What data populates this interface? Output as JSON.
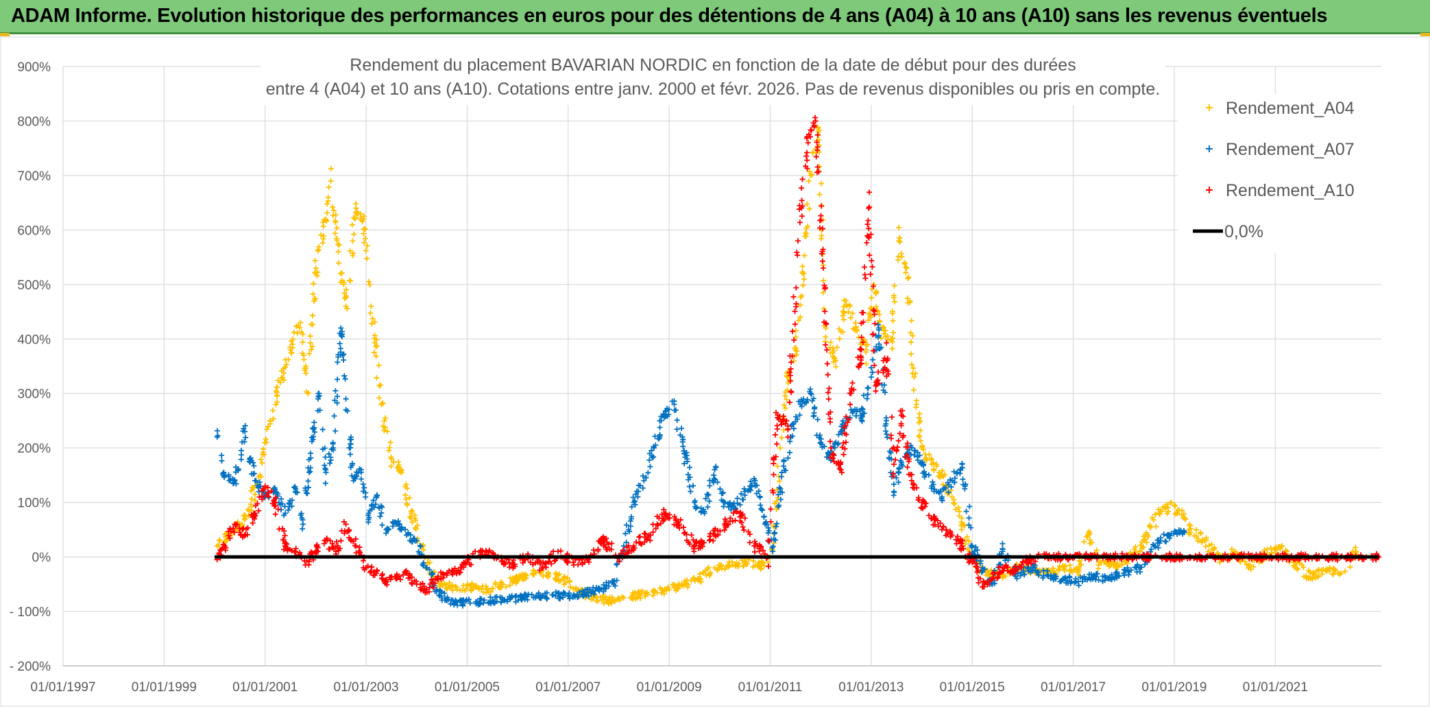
{
  "header": {
    "title": "ADAM Informe. Evolution historique des performances en euros pour des détentions de 4 ans (A04) à 10 ans (A10) sans les revenus éventuels",
    "background_color": "#7fc97a"
  },
  "chart_data": {
    "type": "scatter",
    "title_line1": "Rendement du placement BAVARIAN NORDIC en fonction de la date de début pour des durées",
    "title_line2": "entre 4 (A04) et 10 ans (A10). Cotations entre janv. 2000 et févr. 2026. Pas de revenus disponibles ou pris en compte.",
    "xlabel": "",
    "ylabel": "",
    "x_ticks": [
      "01/01/1997",
      "01/01/1999",
      "01/01/2001",
      "01/01/2003",
      "01/01/2005",
      "01/01/2007",
      "01/01/2009",
      "01/01/2011",
      "01/01/2013",
      "01/01/2015",
      "01/01/2017",
      "01/01/2019",
      "01/01/2021"
    ],
    "y_ticks": [
      "- 200%",
      "- 100%",
      "0%",
      "100%",
      "200%",
      "300%",
      "400%",
      "500%",
      "600%",
      "700%",
      "800%",
      "900%"
    ],
    "xlim": [
      1997.0,
      2023.1
    ],
    "ylim": [
      -200,
      900
    ],
    "grid": true,
    "legend_position": "top-right",
    "series": [
      {
        "name": "Rendement_A04",
        "color": "#ffc000",
        "marker": "+",
        "points": [
          [
            2000.05,
            20
          ],
          [
            2000.3,
            40
          ],
          [
            2000.6,
            70
          ],
          [
            2000.9,
            150
          ],
          [
            2001.1,
            250
          ],
          [
            2001.3,
            320
          ],
          [
            2001.5,
            380
          ],
          [
            2001.7,
            430
          ],
          [
            2001.85,
            300
          ],
          [
            2002.0,
            520
          ],
          [
            2002.2,
            620
          ],
          [
            2002.3,
            690
          ],
          [
            2002.45,
            560
          ],
          [
            2002.6,
            460
          ],
          [
            2002.8,
            640
          ],
          [
            2002.95,
            620
          ],
          [
            2003.1,
            460
          ],
          [
            2003.3,
            280
          ],
          [
            2003.5,
            180
          ],
          [
            2003.7,
            160
          ],
          [
            2003.9,
            80
          ],
          [
            2004.1,
            20
          ],
          [
            2004.3,
            -30
          ],
          [
            2004.5,
            -50
          ],
          [
            2004.8,
            -60
          ],
          [
            2005.1,
            -55
          ],
          [
            2005.4,
            -60
          ],
          [
            2005.7,
            -50
          ],
          [
            2006.0,
            -40
          ],
          [
            2006.3,
            -30
          ],
          [
            2006.6,
            -30
          ],
          [
            2006.9,
            -40
          ],
          [
            2007.2,
            -60
          ],
          [
            2007.5,
            -75
          ],
          [
            2007.8,
            -80
          ],
          [
            2008.1,
            -75
          ],
          [
            2008.4,
            -70
          ],
          [
            2008.7,
            -65
          ],
          [
            2009.0,
            -60
          ],
          [
            2009.3,
            -50
          ],
          [
            2009.6,
            -40
          ],
          [
            2009.9,
            -20
          ],
          [
            2010.2,
            -15
          ],
          [
            2010.5,
            -10
          ],
          [
            2010.8,
            -15
          ],
          [
            2011.05,
            10
          ],
          [
            2011.2,
            200
          ],
          [
            2011.35,
            330
          ],
          [
            2011.5,
            380
          ],
          [
            2011.65,
            520
          ],
          [
            2011.8,
            700
          ],
          [
            2011.95,
            780
          ],
          [
            2012.1,
            420
          ],
          [
            2012.3,
            360
          ],
          [
            2012.5,
            470
          ],
          [
            2012.7,
            420
          ],
          [
            2012.9,
            380
          ],
          [
            2013.05,
            500
          ],
          [
            2013.2,
            420
          ],
          [
            2013.4,
            400
          ],
          [
            2013.55,
            580
          ],
          [
            2013.7,
            530
          ],
          [
            2013.85,
            330
          ],
          [
            2014.0,
            200
          ],
          [
            2014.2,
            170
          ],
          [
            2014.4,
            150
          ],
          [
            2014.6,
            110
          ],
          [
            2014.8,
            60
          ],
          [
            2015.0,
            0
          ],
          [
            2015.2,
            -25
          ],
          [
            2015.4,
            -30
          ],
          [
            2015.6,
            -35
          ],
          [
            2015.9,
            -20
          ],
          [
            2016.2,
            -25
          ],
          [
            2016.5,
            -30
          ],
          [
            2016.8,
            -20
          ],
          [
            2017.1,
            -25
          ],
          [
            2017.3,
            40
          ],
          [
            2017.5,
            -10
          ],
          [
            2017.8,
            -15
          ],
          [
            2018.1,
            -5
          ],
          [
            2018.4,
            30
          ],
          [
            2018.7,
            80
          ],
          [
            2019.0,
            95
          ],
          [
            2019.3,
            50
          ],
          [
            2019.6,
            30
          ],
          [
            2019.9,
            -10
          ],
          [
            2020.2,
            10
          ],
          [
            2020.5,
            -15
          ],
          [
            2020.8,
            5
          ],
          [
            2021.1,
            15
          ],
          [
            2021.4,
            -10
          ],
          [
            2021.7,
            -40
          ],
          [
            2022.0,
            -25
          ],
          [
            2022.3,
            -30
          ],
          [
            2022.6,
            10
          ]
        ]
      },
      {
        "name": "Rendement_A07",
        "color": "#0070c0",
        "marker": "+",
        "points": [
          [
            2000.05,
            220
          ],
          [
            2000.2,
            150
          ],
          [
            2000.4,
            140
          ],
          [
            2000.6,
            230
          ],
          [
            2000.8,
            140
          ],
          [
            2001.0,
            110
          ],
          [
            2001.2,
            120
          ],
          [
            2001.4,
            80
          ],
          [
            2001.6,
            120
          ],
          [
            2001.75,
            60
          ],
          [
            2001.9,
            190
          ],
          [
            2002.05,
            290
          ],
          [
            2002.2,
            160
          ],
          [
            2002.35,
            200
          ],
          [
            2002.5,
            420
          ],
          [
            2002.6,
            290
          ],
          [
            2002.75,
            140
          ],
          [
            2002.9,
            160
          ],
          [
            2003.05,
            80
          ],
          [
            2003.2,
            110
          ],
          [
            2003.4,
            50
          ],
          [
            2003.6,
            60
          ],
          [
            2003.8,
            40
          ],
          [
            2004.0,
            30
          ],
          [
            2004.2,
            -20
          ],
          [
            2004.4,
            -60
          ],
          [
            2004.6,
            -80
          ],
          [
            2004.9,
            -85
          ],
          [
            2005.2,
            -82
          ],
          [
            2005.5,
            -80
          ],
          [
            2005.8,
            -78
          ],
          [
            2006.1,
            -75
          ],
          [
            2006.4,
            -72
          ],
          [
            2006.7,
            -70
          ],
          [
            2007.0,
            -72
          ],
          [
            2007.3,
            -68
          ],
          [
            2007.6,
            -60
          ],
          [
            2007.9,
            -50
          ],
          [
            2008.1,
            20
          ],
          [
            2008.3,
            100
          ],
          [
            2008.5,
            140
          ],
          [
            2008.7,
            200
          ],
          [
            2008.9,
            260
          ],
          [
            2009.1,
            280
          ],
          [
            2009.3,
            190
          ],
          [
            2009.5,
            100
          ],
          [
            2009.7,
            80
          ],
          [
            2009.9,
            160
          ],
          [
            2010.1,
            100
          ],
          [
            2010.3,
            90
          ],
          [
            2010.5,
            120
          ],
          [
            2010.7,
            140
          ],
          [
            2010.9,
            60
          ],
          [
            2011.05,
            10
          ],
          [
            2011.2,
            120
          ],
          [
            2011.4,
            220
          ],
          [
            2011.6,
            280
          ],
          [
            2011.8,
            300
          ],
          [
            2012.0,
            210
          ],
          [
            2012.2,
            180
          ],
          [
            2012.4,
            230
          ],
          [
            2012.6,
            270
          ],
          [
            2012.8,
            260
          ],
          [
            2013.0,
            330
          ],
          [
            2013.15,
            420
          ],
          [
            2013.3,
            250
          ],
          [
            2013.45,
            120
          ],
          [
            2013.6,
            170
          ],
          [
            2013.8,
            200
          ],
          [
            2014.0,
            170
          ],
          [
            2014.2,
            130
          ],
          [
            2014.4,
            110
          ],
          [
            2014.6,
            140
          ],
          [
            2014.8,
            170
          ],
          [
            2015.0,
            20
          ],
          [
            2015.2,
            -20
          ],
          [
            2015.4,
            -50
          ],
          [
            2015.6,
            10
          ],
          [
            2015.9,
            -30
          ],
          [
            2016.2,
            -20
          ],
          [
            2016.5,
            -35
          ],
          [
            2016.8,
            -40
          ],
          [
            2017.1,
            -45
          ],
          [
            2017.4,
            -35
          ],
          [
            2017.7,
            -40
          ],
          [
            2018.0,
            -30
          ],
          [
            2018.3,
            -20
          ],
          [
            2018.6,
            20
          ],
          [
            2018.9,
            40
          ],
          [
            2019.2,
            45
          ]
        ]
      },
      {
        "name": "Rendement_A10",
        "color": "#ff0000",
        "marker": "+",
        "points": [
          [
            2000.05,
            -5
          ],
          [
            2000.2,
            20
          ],
          [
            2000.4,
            60
          ],
          [
            2000.6,
            40
          ],
          [
            2000.8,
            80
          ],
          [
            2001.0,
            130
          ],
          [
            2001.2,
            100
          ],
          [
            2001.4,
            20
          ],
          [
            2001.6,
            10
          ],
          [
            2001.8,
            -15
          ],
          [
            2002.0,
            10
          ],
          [
            2002.2,
            30
          ],
          [
            2002.4,
            10
          ],
          [
            2002.6,
            60
          ],
          [
            2002.8,
            20
          ],
          [
            2003.0,
            -20
          ],
          [
            2003.2,
            -30
          ],
          [
            2003.4,
            -45
          ],
          [
            2003.6,
            -40
          ],
          [
            2003.8,
            -30
          ],
          [
            2004.0,
            -50
          ],
          [
            2004.2,
            -60
          ],
          [
            2004.4,
            -40
          ],
          [
            2004.6,
            -30
          ],
          [
            2004.8,
            -25
          ],
          [
            2005.0,
            -10
          ],
          [
            2005.3,
            10
          ],
          [
            2005.6,
            0
          ],
          [
            2005.9,
            -15
          ],
          [
            2006.2,
            0
          ],
          [
            2006.5,
            -20
          ],
          [
            2006.8,
            10
          ],
          [
            2007.1,
            -10
          ],
          [
            2007.4,
            -5
          ],
          [
            2007.7,
            30
          ],
          [
            2008.0,
            0
          ],
          [
            2008.3,
            20
          ],
          [
            2008.6,
            40
          ],
          [
            2008.9,
            80
          ],
          [
            2009.2,
            60
          ],
          [
            2009.5,
            20
          ],
          [
            2009.8,
            30
          ],
          [
            2010.1,
            60
          ],
          [
            2010.4,
            80
          ],
          [
            2010.7,
            20
          ],
          [
            2010.95,
            0
          ],
          [
            2011.15,
            260
          ],
          [
            2011.35,
            240
          ],
          [
            2011.55,
            580
          ],
          [
            2011.75,
            760
          ],
          [
            2011.9,
            800
          ],
          [
            2012.05,
            530
          ],
          [
            2012.2,
            200
          ],
          [
            2012.4,
            160
          ],
          [
            2012.6,
            300
          ],
          [
            2012.8,
            380
          ],
          [
            2012.95,
            640
          ],
          [
            2013.1,
            320
          ],
          [
            2013.3,
            360
          ],
          [
            2013.45,
            170
          ],
          [
            2013.6,
            260
          ],
          [
            2013.8,
            140
          ],
          [
            2014.0,
            100
          ],
          [
            2014.2,
            70
          ],
          [
            2014.4,
            50
          ],
          [
            2014.6,
            40
          ],
          [
            2014.8,
            20
          ],
          [
            2015.0,
            -10
          ],
          [
            2015.2,
            -55
          ],
          [
            2015.4,
            -40
          ],
          [
            2015.6,
            -20
          ],
          [
            2015.8,
            -25
          ],
          [
            2016.0,
            -10
          ],
          [
            2016.3,
            0
          ],
          [
            2016.8,
            0
          ],
          [
            2017.3,
            0
          ],
          [
            2017.8,
            0
          ],
          [
            2018.3,
            0
          ],
          [
            2018.8,
            0
          ],
          [
            2019.3,
            0
          ],
          [
            2019.8,
            0
          ],
          [
            2020.3,
            0
          ],
          [
            2020.8,
            0
          ],
          [
            2021.3,
            0
          ],
          [
            2021.8,
            0
          ],
          [
            2022.3,
            0
          ],
          [
            2022.8,
            0
          ],
          [
            2023.05,
            0
          ]
        ]
      },
      {
        "name": "0,0%",
        "color": "#000000",
        "marker": "line",
        "points": [
          [
            2000.0,
            0
          ],
          [
            2023.05,
            0
          ]
        ]
      }
    ]
  }
}
